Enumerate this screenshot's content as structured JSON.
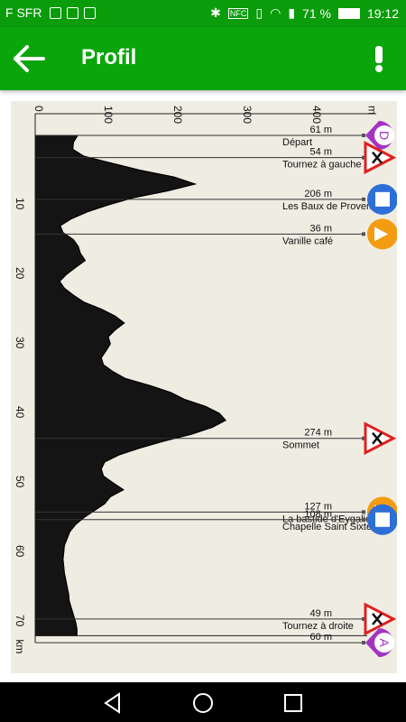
{
  "status": {
    "carrier": "F SFR",
    "battery": "71 %",
    "time": "19:12"
  },
  "appbar": {
    "title": "Profil",
    "back_icon": "arrow-left-icon",
    "alert_icon": "exclamation-icon"
  },
  "profile": {
    "distance_ticks": [
      "10",
      "20",
      "30",
      "40",
      "50",
      "60",
      "70"
    ],
    "distance_unit": "km",
    "elevation_ticks": [
      "0",
      "100",
      "200",
      "300",
      "400"
    ],
    "elevation_unit": "m",
    "waypoints": [
      {
        "elev": "61 m",
        "name": "Départ",
        "icon": "start-marker-icon"
      },
      {
        "elev": "54 m",
        "name": "Tournez à gauche",
        "icon": "warning-triangle-icon"
      },
      {
        "elev": "206 m",
        "name": "Les Baux de Provence",
        "icon": "monument-icon"
      },
      {
        "elev": "36 m",
        "name": "Vanille café",
        "icon": "cafe-icon"
      },
      {
        "elev": "274 m",
        "name": "Sommet",
        "icon": "warning-triangle-icon"
      },
      {
        "elev": "127 m",
        "name": "La bastide d'Eygalières",
        "icon": "turn-icon"
      },
      {
        "elev": "108 m",
        "name": "Chapelle Saint Sixte",
        "icon": "monument-icon"
      },
      {
        "elev": "49 m",
        "name": "Tournez à droite",
        "icon": "warning-triangle-icon"
      },
      {
        "elev": "60 m",
        "name": "",
        "icon": "arrival-marker-icon"
      }
    ]
  },
  "chart_data": {
    "type": "area",
    "xlabel": "km",
    "ylabel": "m",
    "xlim": [
      0,
      72
    ],
    "ylim": [
      0,
      480
    ],
    "x": [
      0,
      1,
      2,
      3,
      4,
      5,
      6,
      7,
      8,
      9,
      10,
      11,
      12,
      13,
      14,
      15,
      16,
      17,
      18,
      19,
      20,
      21,
      22,
      23,
      24,
      25,
      26,
      27,
      28,
      29,
      30,
      31,
      32,
      33,
      34,
      35,
      36,
      37,
      38,
      39,
      40,
      41,
      42,
      43,
      44,
      45,
      46,
      47,
      48,
      49,
      50,
      51,
      52,
      53,
      54,
      55,
      56,
      57,
      58,
      59,
      60,
      61,
      62,
      63,
      64,
      65,
      66,
      67,
      68,
      69,
      70,
      71,
      72
    ],
    "y": [
      61,
      55,
      54,
      70,
      110,
      150,
      200,
      230,
      190,
      140,
      105,
      75,
      52,
      36,
      40,
      55,
      62,
      65,
      72,
      58,
      45,
      35,
      42,
      55,
      70,
      95,
      115,
      128,
      115,
      105,
      108,
      102,
      95,
      98,
      112,
      130,
      165,
      195,
      215,
      245,
      265,
      274,
      255,
      225,
      185,
      150,
      120,
      100,
      95,
      98,
      112,
      127,
      108,
      100,
      85,
      70,
      58,
      50,
      46,
      42,
      41,
      40,
      41,
      42,
      44,
      46,
      48,
      49,
      52,
      55,
      58,
      60,
      60
    ]
  }
}
